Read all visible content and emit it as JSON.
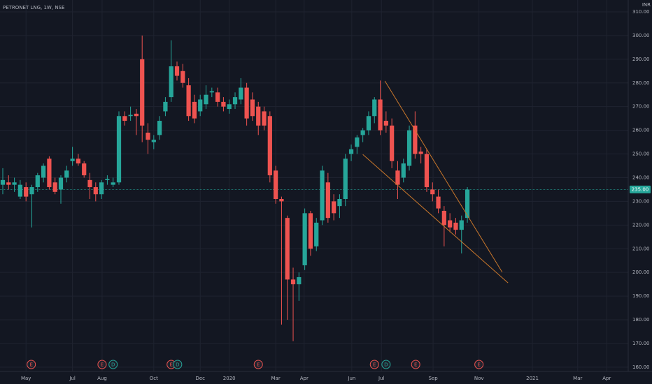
{
  "chart_data": {
    "type": "candlestick",
    "title": "PETRONET LNG, 1W, NSE",
    "currency": "INR",
    "up_color": "#26a69a",
    "down_color": "#ef5350",
    "grid": true,
    "open": [
      237,
      238,
      237,
      232,
      236,
      233,
      236,
      240,
      248,
      238,
      235,
      240,
      247,
      248,
      246,
      239,
      236,
      233,
      239,
      237,
      238,
      266,
      266,
      267,
      290,
      259,
      255,
      258,
      268,
      274,
      287,
      285,
      279,
      272,
      268,
      271,
      276,
      276,
      272,
      269,
      271,
      273,
      278,
      273,
      270,
      268,
      266,
      243,
      231,
      223,
      197,
      195,
      203,
      225,
      211,
      222,
      238,
      230,
      228,
      231,
      250,
      253,
      258,
      260,
      266,
      273,
      264,
      262,
      243,
      240,
      245,
      262,
      251,
      250,
      235,
      232,
      226,
      222,
      221,
      218,
      223
    ],
    "high": [
      244,
      241,
      240,
      239,
      238,
      237,
      242,
      246,
      249,
      240,
      241,
      245,
      253,
      250,
      247,
      242,
      238,
      239,
      241,
      240,
      268,
      268,
      270,
      269,
      300,
      263,
      258,
      266,
      274,
      298,
      289,
      288,
      282,
      275,
      275,
      279,
      278,
      278,
      274,
      273,
      276,
      282,
      280,
      276,
      272,
      270,
      268,
      245,
      232,
      224,
      202,
      200,
      227,
      226,
      223,
      245,
      242,
      233,
      233,
      250,
      254,
      258,
      261,
      268,
      274,
      281,
      268,
      265,
      247,
      248,
      262,
      268,
      253,
      252,
      238,
      235,
      228,
      225,
      223,
      224,
      236
    ],
    "low": [
      233,
      235,
      234,
      231,
      230,
      219,
      234,
      238,
      235,
      233,
      229,
      238,
      245,
      245,
      240,
      231,
      230,
      231,
      237,
      236,
      237,
      262,
      264,
      258,
      255,
      250,
      252,
      256,
      266,
      272,
      281,
      278,
      264,
      263,
      266,
      269,
      274,
      270,
      268,
      267,
      269,
      271,
      262,
      264,
      258,
      260,
      238,
      229,
      178,
      180,
      171,
      188,
      201,
      207,
      209,
      220,
      221,
      222,
      223,
      228,
      247,
      250,
      255,
      258,
      263,
      258,
      259,
      244,
      231,
      238,
      243,
      248,
      246,
      234,
      230,
      225,
      211,
      217,
      216,
      208,
      221
    ],
    "close": [
      239,
      237,
      238,
      237,
      232,
      236,
      241,
      245,
      236,
      234,
      240,
      243,
      248,
      246,
      241,
      236,
      233,
      238,
      239.5,
      238,
      266,
      264,
      266.5,
      266,
      262,
      256,
      256,
      264,
      272,
      287,
      283,
      280,
      266,
      265,
      273,
      275,
      276.5,
      272,
      270,
      271,
      274,
      278,
      265,
      266,
      262,
      262,
      241,
      231,
      230,
      197,
      195,
      198,
      225,
      210,
      221,
      243,
      223,
      225,
      231,
      248,
      252,
      257,
      260,
      266,
      273,
      260,
      262,
      247,
      237,
      246,
      260,
      250,
      250,
      236,
      233,
      227,
      220,
      219,
      218,
      222,
      235
    ],
    "xlim": [
      -0.48,
      107.7
    ],
    "xticks": [
      {
        "value": 4.0,
        "label": "May"
      },
      {
        "value": 12.0,
        "label": "Jul"
      },
      {
        "value": 17.1,
        "label": "Aug"
      },
      {
        "value": 26.0,
        "label": "Oct"
      },
      {
        "value": 34.0,
        "label": "Dec"
      },
      {
        "value": 39.0,
        "label": "2020"
      },
      {
        "value": 47.0,
        "label": "Mar"
      },
      {
        "value": 51.9,
        "label": "Apr"
      },
      {
        "value": 60.1,
        "label": "Jun"
      },
      {
        "value": 65.2,
        "label": "Jul"
      },
      {
        "value": 74.1,
        "label": "Sep"
      },
      {
        "value": 82.0,
        "label": "Nov"
      },
      {
        "value": 91.2,
        "label": "2021"
      },
      {
        "value": 99.0,
        "label": "Mar"
      },
      {
        "value": 104.0,
        "label": "Apr"
      }
    ],
    "ylim": [
      158.2,
      315.0
    ],
    "yticks": [
      {
        "value": 160,
        "label": "160.00"
      },
      {
        "value": 170,
        "label": "170.00"
      },
      {
        "value": 180,
        "label": "180.00"
      },
      {
        "value": 190,
        "label": "190.00"
      },
      {
        "value": 200,
        "label": "200.00"
      },
      {
        "value": 210,
        "label": "210.00"
      },
      {
        "value": 220,
        "label": "220.00"
      },
      {
        "value": 230,
        "label": "230.00"
      },
      {
        "value": 240,
        "label": "240.00"
      },
      {
        "value": 250,
        "label": "250.00"
      },
      {
        "value": 260,
        "label": "260.00"
      },
      {
        "value": 270,
        "label": "270.00"
      },
      {
        "value": 280,
        "label": "280.00"
      },
      {
        "value": 290,
        "label": "290.00"
      },
      {
        "value": 300,
        "label": "300.00"
      },
      {
        "value": 310,
        "label": "310.00"
      }
    ],
    "last_price": {
      "value": 235,
      "label": "235.00"
    },
    "trendlines": [
      {
        "color": "#c9772b",
        "x": [
          65.8,
          86.0
        ],
        "y": [
          280.8,
          200.1
        ]
      },
      {
        "color": "#c9772b",
        "x": [
          62.0,
          87.0
        ],
        "y": [
          249.8,
          195.6
        ]
      }
    ],
    "events": [
      {
        "x": 4.9,
        "label": "E"
      },
      {
        "x": 17.1,
        "label": "E"
      },
      {
        "x": 19.0,
        "label": "D"
      },
      {
        "x": 29.0,
        "label": "E"
      },
      {
        "x": 30.1,
        "label": "D"
      },
      {
        "x": 44.0,
        "label": "E"
      },
      {
        "x": 64.0,
        "label": "E"
      },
      {
        "x": 66.0,
        "label": "D"
      },
      {
        "x": 71.1,
        "label": "E"
      },
      {
        "x": 82.0,
        "label": "E"
      }
    ]
  }
}
